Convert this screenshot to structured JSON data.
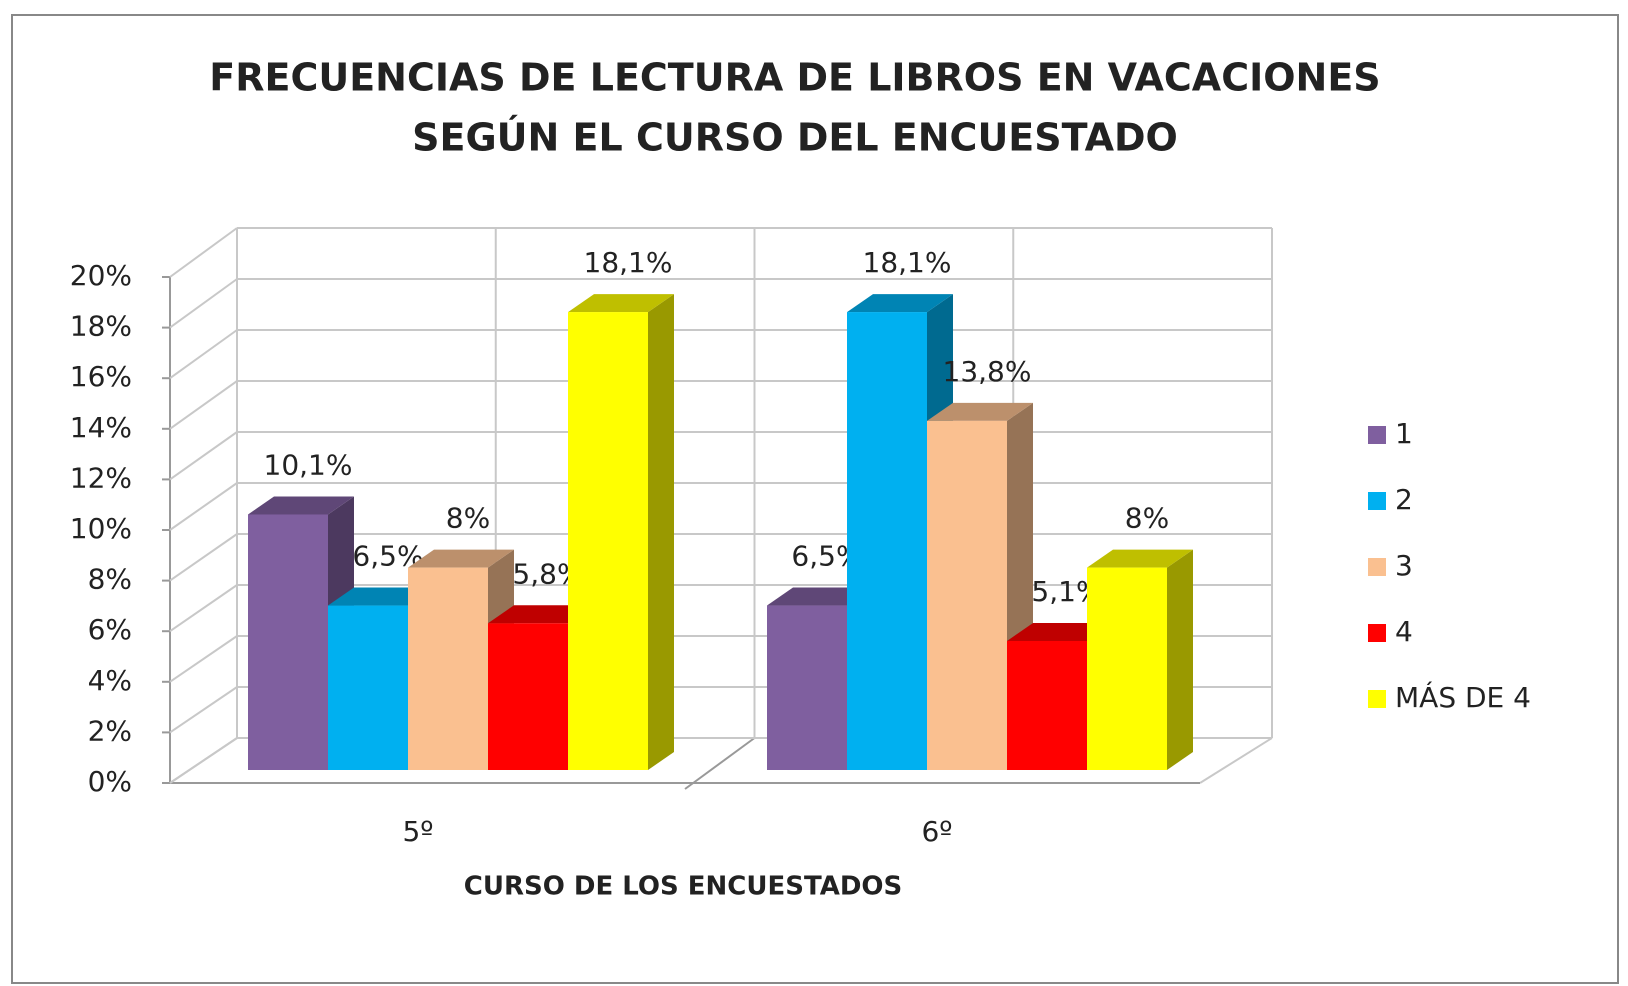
{
  "chart_data": {
    "type": "bar3d",
    "title": [
      "FRECUENCIAS DE LECTURA DE LIBROS EN VACACIONES",
      "SEGÚN EL CURSO DEL ENCUESTADO"
    ],
    "xlabel": "CURSO DE LOS ENCUESTADOS",
    "categories": [
      "5º",
      "6º"
    ],
    "series": [
      {
        "name": "1",
        "color": "#7f5f9f",
        "values": [
          10.1,
          6.5
        ],
        "value_labels": [
          "10,1%",
          "6,5%"
        ]
      },
      {
        "name": "2",
        "color": "#00b0f0",
        "values": [
          6.5,
          18.1
        ],
        "value_labels": [
          "6,5%",
          "18,1%"
        ]
      },
      {
        "name": "3",
        "color": "#fac090",
        "values": [
          8,
          13.8
        ],
        "value_labels": [
          "8%",
          "13,8%"
        ]
      },
      {
        "name": "4",
        "color": "#ff0000",
        "values": [
          5.8,
          5.1
        ],
        "value_labels": [
          "5,8%",
          "5,1%"
        ]
      },
      {
        "name": "MÁS DE 4",
        "color": "#ffff00",
        "values": [
          18.1,
          8
        ],
        "value_labels": [
          "18,1%",
          "8%"
        ]
      }
    ],
    "ylim": [
      0,
      20
    ],
    "yticks": [
      {
        "value": 0,
        "label": "0%"
      },
      {
        "value": 2,
        "label": "2%"
      },
      {
        "value": 4,
        "label": "4%"
      },
      {
        "value": 6,
        "label": "6%"
      },
      {
        "value": 8,
        "label": "8%"
      },
      {
        "value": 10,
        "label": "10%"
      },
      {
        "value": 12,
        "label": "12%"
      },
      {
        "value": 14,
        "label": "14%"
      },
      {
        "value": 16,
        "label": "16%"
      },
      {
        "value": 18,
        "label": "18%"
      },
      {
        "value": 20,
        "label": "20%"
      }
    ],
    "grid": true,
    "legend": "right"
  }
}
